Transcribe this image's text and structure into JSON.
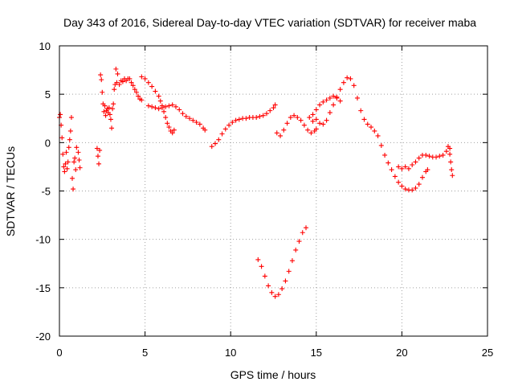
{
  "chart_data": {
    "type": "scatter",
    "title": "Day 343 of 2016, Sidereal Day-to-day VTEC variation (SDTVAR) for receiver maba",
    "xlabel": "GPS time / hours",
    "ylabel": "SDTVAR / TECUs",
    "xlim": [
      0,
      25
    ],
    "ylim": [
      -20,
      10
    ],
    "x_ticks": [
      0,
      5,
      10,
      15,
      20,
      25
    ],
    "y_ticks": [
      -20,
      -15,
      -10,
      -5,
      0,
      5,
      10
    ],
    "x_tick_labels": [
      "0",
      "5",
      "10",
      "15",
      "20",
      "25"
    ],
    "y_tick_labels": [
      "-20",
      "-15",
      "-10",
      "-5",
      "0",
      "5",
      "10"
    ],
    "grid": true,
    "legend": "none",
    "marker": "plus",
    "series": [
      {
        "color": "#ff0000",
        "points": [
          [
            0.0,
            2.6
          ],
          [
            0.05,
            2.9
          ],
          [
            0.1,
            1.8
          ],
          [
            0.15,
            0.5
          ],
          [
            0.2,
            -1.2
          ],
          [
            0.25,
            -2.5
          ],
          [
            0.3,
            -3.0
          ],
          [
            0.35,
            -2.2
          ],
          [
            0.4,
            -1.0
          ],
          [
            0.45,
            -2.7
          ],
          [
            0.5,
            -2.0
          ],
          [
            0.55,
            -0.5
          ],
          [
            0.6,
            0.3
          ],
          [
            0.65,
            1.2
          ],
          [
            0.7,
            2.6
          ],
          [
            0.75,
            -3.7
          ],
          [
            0.8,
            -4.8
          ],
          [
            0.85,
            -2.0
          ],
          [
            0.9,
            -1.6
          ],
          [
            0.95,
            -2.8
          ],
          [
            1.0,
            -0.5
          ],
          [
            1.1,
            -1.0
          ],
          [
            1.15,
            -1.8
          ],
          [
            1.2,
            -2.6
          ],
          [
            2.2,
            -0.6
          ],
          [
            2.25,
            -1.4
          ],
          [
            2.3,
            -2.2
          ],
          [
            2.35,
            -0.8
          ],
          [
            2.4,
            7.0
          ],
          [
            2.45,
            6.5
          ],
          [
            2.5,
            5.2
          ],
          [
            2.55,
            4.0
          ],
          [
            2.6,
            3.2
          ],
          [
            2.65,
            3.8
          ],
          [
            2.7,
            2.8
          ],
          [
            2.75,
            3.3
          ],
          [
            2.8,
            3.5
          ],
          [
            2.85,
            3.1
          ],
          [
            2.9,
            3.6
          ],
          [
            2.95,
            2.9
          ],
          [
            3.0,
            2.4
          ],
          [
            3.05,
            1.5
          ],
          [
            3.1,
            3.5
          ],
          [
            3.15,
            4.0
          ],
          [
            3.2,
            5.5
          ],
          [
            3.25,
            6.0
          ],
          [
            3.3,
            7.6
          ],
          [
            3.35,
            6.2
          ],
          [
            3.4,
            7.1
          ],
          [
            3.5,
            6.0
          ],
          [
            3.6,
            6.4
          ],
          [
            3.7,
            6.3
          ],
          [
            3.8,
            6.6
          ],
          [
            3.9,
            6.4
          ],
          [
            4.0,
            6.6
          ],
          [
            4.1,
            6.6
          ],
          [
            4.2,
            6.2
          ],
          [
            4.3,
            5.9
          ],
          [
            4.4,
            5.5
          ],
          [
            4.5,
            5.2
          ],
          [
            4.6,
            4.8
          ],
          [
            4.7,
            4.5
          ],
          [
            4.8,
            4.4
          ],
          [
            4.8,
            6.8
          ],
          [
            5.0,
            6.6
          ],
          [
            5.2,
            6.2
          ],
          [
            5.4,
            5.8
          ],
          [
            5.6,
            5.3
          ],
          [
            5.8,
            4.8
          ],
          [
            5.9,
            4.3
          ],
          [
            6.0,
            3.8
          ],
          [
            6.1,
            3.2
          ],
          [
            6.2,
            2.6
          ],
          [
            6.3,
            2.0
          ],
          [
            6.4,
            1.6
          ],
          [
            6.5,
            1.2
          ],
          [
            6.6,
            1.0
          ],
          [
            6.7,
            1.3
          ],
          [
            5.2,
            3.8
          ],
          [
            5.4,
            3.7
          ],
          [
            5.6,
            3.6
          ],
          [
            5.8,
            3.5
          ],
          [
            6.0,
            3.6
          ],
          [
            6.2,
            3.7
          ],
          [
            6.4,
            3.8
          ],
          [
            6.6,
            3.9
          ],
          [
            6.8,
            3.7
          ],
          [
            7.0,
            3.4
          ],
          [
            7.2,
            3.0
          ],
          [
            7.4,
            2.7
          ],
          [
            7.6,
            2.5
          ],
          [
            7.8,
            2.3
          ],
          [
            8.0,
            2.1
          ],
          [
            8.2,
            1.9
          ],
          [
            8.4,
            1.5
          ],
          [
            8.5,
            1.3
          ],
          [
            8.9,
            -0.4
          ],
          [
            9.1,
            -0.1
          ],
          [
            9.3,
            0.3
          ],
          [
            9.5,
            0.9
          ],
          [
            9.7,
            1.4
          ],
          [
            9.9,
            1.8
          ],
          [
            10.1,
            2.1
          ],
          [
            10.3,
            2.3
          ],
          [
            10.5,
            2.4
          ],
          [
            10.7,
            2.5
          ],
          [
            10.9,
            2.5
          ],
          [
            11.1,
            2.6
          ],
          [
            11.3,
            2.6
          ],
          [
            11.5,
            2.6
          ],
          [
            11.7,
            2.7
          ],
          [
            11.9,
            2.8
          ],
          [
            12.1,
            3.0
          ],
          [
            12.3,
            3.3
          ],
          [
            12.5,
            3.6
          ],
          [
            12.6,
            3.9
          ],
          [
            11.6,
            -12.1
          ],
          [
            11.8,
            -12.8
          ],
          [
            12.0,
            -13.8
          ],
          [
            12.2,
            -14.8
          ],
          [
            12.4,
            -15.5
          ],
          [
            12.6,
            -15.9
          ],
          [
            12.8,
            -15.7
          ],
          [
            13.0,
            -15.1
          ],
          [
            13.2,
            -14.3
          ],
          [
            13.4,
            -13.3
          ],
          [
            13.6,
            -12.2
          ],
          [
            13.8,
            -11.1
          ],
          [
            14.0,
            -10.2
          ],
          [
            14.2,
            -9.3
          ],
          [
            14.4,
            -8.8
          ],
          [
            12.7,
            1.0
          ],
          [
            12.9,
            0.7
          ],
          [
            13.1,
            1.3
          ],
          [
            13.3,
            2.0
          ],
          [
            13.5,
            2.6
          ],
          [
            13.7,
            2.8
          ],
          [
            13.9,
            2.6
          ],
          [
            14.1,
            2.3
          ],
          [
            14.3,
            1.8
          ],
          [
            14.5,
            1.3
          ],
          [
            14.7,
            1.0
          ],
          [
            14.9,
            1.2
          ],
          [
            14.8,
            2.9
          ],
          [
            15.0,
            2.4
          ],
          [
            15.2,
            2.0
          ],
          [
            15.4,
            1.9
          ],
          [
            15.6,
            2.3
          ],
          [
            15.8,
            3.1
          ],
          [
            16.0,
            3.9
          ],
          [
            16.2,
            4.7
          ],
          [
            16.4,
            5.5
          ],
          [
            16.6,
            6.2
          ],
          [
            16.8,
            6.7
          ],
          [
            17.0,
            6.6
          ],
          [
            17.2,
            5.9
          ],
          [
            17.4,
            4.6
          ],
          [
            17.6,
            3.3
          ],
          [
            17.8,
            2.4
          ],
          [
            18.0,
            1.9
          ],
          [
            18.2,
            1.6
          ],
          [
            18.4,
            1.2
          ],
          [
            18.6,
            0.7
          ],
          [
            18.8,
            -0.3
          ],
          [
            19.0,
            -1.3
          ],
          [
            19.2,
            -2.1
          ],
          [
            19.4,
            -2.8
          ],
          [
            19.6,
            -3.5
          ],
          [
            19.8,
            -4.1
          ],
          [
            20.0,
            -4.5
          ],
          [
            20.2,
            -4.8
          ],
          [
            20.4,
            -4.9
          ],
          [
            20.6,
            -4.9
          ],
          [
            20.8,
            -4.7
          ],
          [
            21.0,
            -4.3
          ],
          [
            21.2,
            -3.6
          ],
          [
            21.4,
            -3.0
          ],
          [
            21.5,
            -2.8
          ],
          [
            15.0,
            3.4
          ],
          [
            15.2,
            3.9
          ],
          [
            15.4,
            4.2
          ],
          [
            15.6,
            4.4
          ],
          [
            15.8,
            4.6
          ],
          [
            16.0,
            4.8
          ],
          [
            16.2,
            4.6
          ],
          [
            16.4,
            4.3
          ],
          [
            14.6,
            2.6
          ],
          [
            14.8,
            2.2
          ],
          [
            15.0,
            1.4
          ],
          [
            19.8,
            -2.5
          ],
          [
            20.0,
            -2.7
          ],
          [
            20.2,
            -2.5
          ],
          [
            20.4,
            -2.7
          ],
          [
            20.6,
            -2.3
          ],
          [
            20.8,
            -2.0
          ],
          [
            21.0,
            -1.6
          ],
          [
            21.2,
            -1.3
          ],
          [
            21.4,
            -1.3
          ],
          [
            21.6,
            -1.4
          ],
          [
            21.8,
            -1.5
          ],
          [
            22.0,
            -1.5
          ],
          [
            22.2,
            -1.4
          ],
          [
            22.4,
            -1.3
          ],
          [
            22.6,
            -0.9
          ],
          [
            22.7,
            -0.4
          ],
          [
            22.8,
            -1.2
          ],
          [
            22.85,
            -2.0
          ],
          [
            22.9,
            -2.8
          ],
          [
            22.95,
            -3.4
          ],
          [
            22.8,
            -0.6
          ]
        ]
      }
    ]
  }
}
